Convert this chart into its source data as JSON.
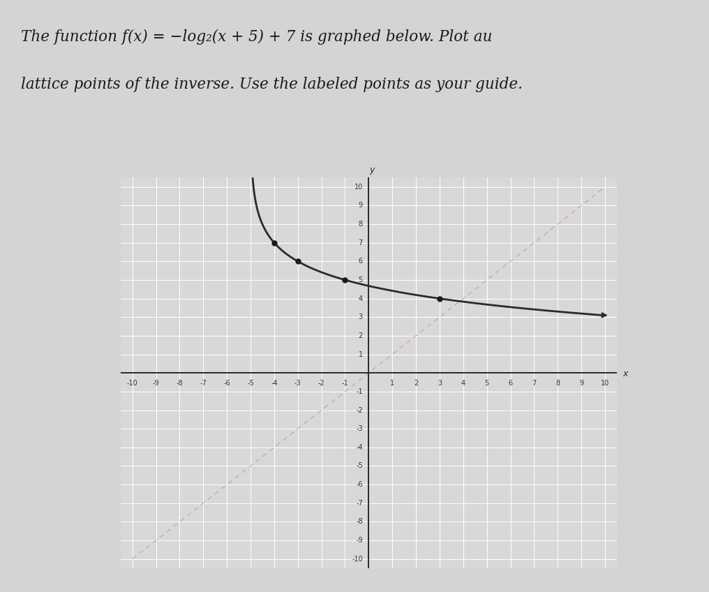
{
  "title_line1": "The function f(x) = −log₂(x + 5) + 7 is graphed below. Plot au",
  "title_line2": "lattice points of the inverse. Use the labeled points as your guide.",
  "xlim": [
    -10,
    10
  ],
  "ylim": [
    -10,
    10
  ],
  "fig_bg": "#d4d4d4",
  "plot_bg": "#d8d8d8",
  "grid_color": "#c0c0c0",
  "inner_grid_color": "#bebebe",
  "axis_color": "#2a2a2a",
  "curve_color": "#2a2a2a",
  "dashed_line_color": "#d4a0a0",
  "lattice_points_f": [
    [
      -4,
      7
    ],
    [
      -3,
      6
    ],
    [
      -1,
      5
    ],
    [
      3,
      4
    ]
  ],
  "point_color": "#1a1a1a",
  "point_size": 5,
  "tick_fontsize": 7,
  "title_fontsize": 15.5
}
